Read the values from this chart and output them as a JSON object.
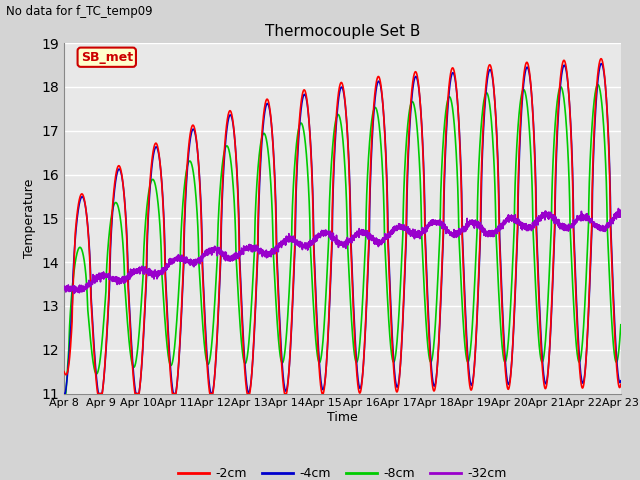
{
  "title": "Thermocouple Set B",
  "subtitle": "No data for f_TC_temp09",
  "xlabel": "Time",
  "ylabel": "Temperature",
  "ylim": [
    11.0,
    19.0
  ],
  "yticks": [
    11.0,
    12.0,
    13.0,
    14.0,
    15.0,
    16.0,
    17.0,
    18.0,
    19.0
  ],
  "xtick_labels": [
    "Apr 8",
    "Apr 9",
    "Apr 10",
    "Apr 11",
    "Apr 12",
    "Apr 13",
    "Apr 14",
    "Apr 15",
    "Apr 16",
    "Apr 17",
    "Apr 18",
    "Apr 19",
    "Apr 20",
    "Apr 21",
    "Apr 22",
    "Apr 23"
  ],
  "legend_labels": [
    "-2cm",
    "-4cm",
    "-8cm",
    "-32cm"
  ],
  "legend_colors": [
    "#ff0000",
    "#0000cd",
    "#00cc00",
    "#9900cc"
  ],
  "background_color": "#e8e8e8",
  "fig_bg_color": "#d4d4d4",
  "legend_box_facecolor": "#ffffcc",
  "legend_box_edge": "#cc0000",
  "annotation_text": "SB_met",
  "annotation_color": "#cc0000",
  "line_width": 1.2
}
